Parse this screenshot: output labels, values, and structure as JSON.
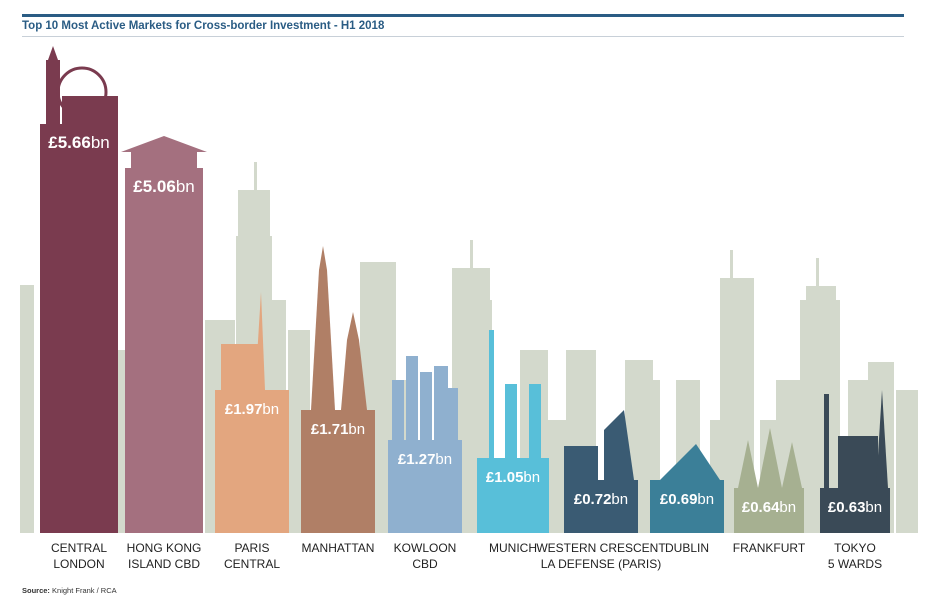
{
  "title": "Top 10 Most Active Markets for Cross-border Investment - H1 2018",
  "source": {
    "label": "Source:",
    "text": "Knight Frank / RCA"
  },
  "chart_data": {
    "type": "bar",
    "unit_prefix": "£",
    "unit_suffix": "bn",
    "categories": [
      [
        "CENTRAL",
        "LONDON"
      ],
      [
        "HONG KONG",
        "ISLAND CBD"
      ],
      [
        "PARIS",
        "CENTRAL"
      ],
      [
        "MANHATTAN"
      ],
      [
        "KOWLOON",
        "CBD"
      ],
      [
        "MUNICH"
      ],
      [
        "WESTERN CRESCENT",
        "LA DEFENSE (PARIS)"
      ],
      [
        "DUBLIN"
      ],
      [
        "FRANKFURT"
      ],
      [
        "TOKYO",
        "5 WARDS"
      ]
    ],
    "values": [
      5.66,
      5.06,
      1.97,
      1.71,
      1.27,
      1.05,
      0.72,
      0.69,
      0.64,
      0.63
    ],
    "value_labels": [
      "5.66",
      "5.06",
      "1.97",
      "1.71",
      "1.27",
      "1.05",
      "0.72",
      "0.69",
      "0.64",
      "0.63"
    ],
    "colors": [
      "#7a3b4f",
      "#a4707f",
      "#e3a67f",
      "#b07f66",
      "#8fb0cf",
      "#58bfd9",
      "#3a5b73",
      "#3b7f98",
      "#a6b091",
      "#3a4a57"
    ],
    "background_color": "#d3d9cc",
    "grid": false
  }
}
